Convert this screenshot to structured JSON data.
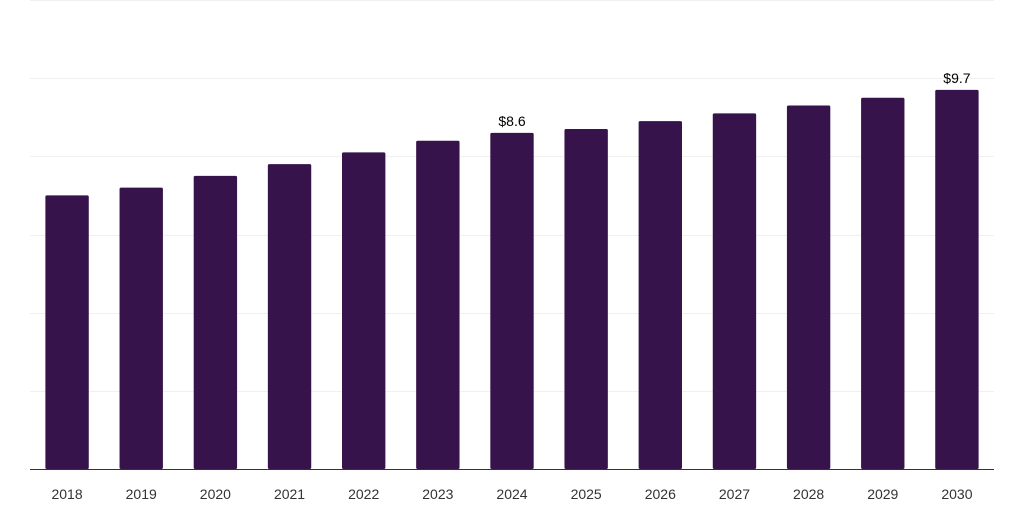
{
  "chart_data": {
    "type": "bar",
    "categories": [
      "2018",
      "2019",
      "2020",
      "2021",
      "2022",
      "2023",
      "2024",
      "2025",
      "2026",
      "2027",
      "2028",
      "2029",
      "2030"
    ],
    "values": [
      7.0,
      7.2,
      7.5,
      7.8,
      8.1,
      8.4,
      8.6,
      8.7,
      8.9,
      9.1,
      9.3,
      9.5,
      9.7
    ],
    "data_labels": [
      {
        "category": "2024",
        "text": "$8.6"
      },
      {
        "category": "2030",
        "text": "$9.7"
      }
    ],
    "ylim": [
      0,
      12
    ],
    "grid": true,
    "colors": {
      "bar": "#36134a",
      "grid": "#f0f0f0",
      "axis": "#333333"
    }
  }
}
